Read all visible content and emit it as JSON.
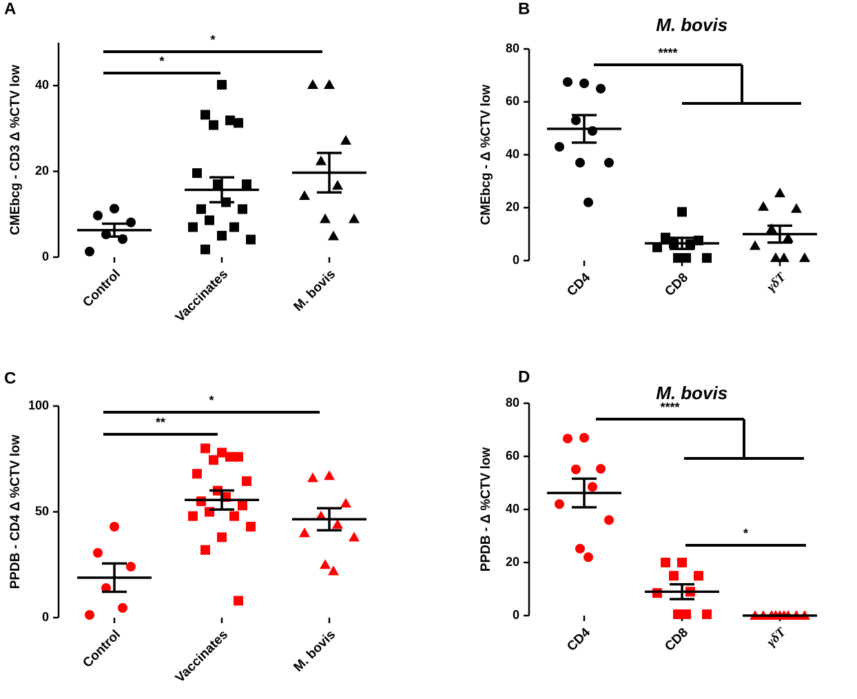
{
  "chart_data": [
    {
      "type": "dot",
      "panel": "A",
      "ylabel": "CMEbcg - CD3 Δ %CTV low",
      "categories": [
        "Control",
        "Vaccinates",
        "M. bovis"
      ],
      "markers": [
        "circle",
        "square",
        "triangle"
      ],
      "color": "#000000",
      "values": [
        [
          11.3,
          9.7,
          8.1,
          5.3,
          4.2,
          1.3
        ],
        [
          40.2,
          33.2,
          31.3,
          30.8,
          31.9,
          19.6,
          17.0,
          17.0,
          12.8,
          11.2,
          11.2,
          8.6,
          7.0,
          7.0,
          4.1,
          5.0,
          1.8
        ],
        [
          40.2,
          40.2,
          27.2,
          22.4,
          16.7,
          14.3,
          8.9,
          8.9,
          4.9
        ]
      ],
      "means": [
        6.3,
        15.7,
        19.7
      ],
      "sems": [
        1.5,
        2.9,
        4.6
      ],
      "ylim": [
        0,
        50
      ],
      "yticks": [
        0,
        20,
        40
      ],
      "significance": [
        {
          "groups": [
            0
          ],
          "vs": [
            1
          ],
          "label": "*"
        },
        {
          "groups": [
            0
          ],
          "vs": [
            2
          ],
          "label": "*"
        }
      ]
    },
    {
      "type": "dot",
      "panel": "B",
      "title": "M. bovis",
      "ylabel": "CMEbcg - Δ %CTV low",
      "categories": [
        "CD4",
        "CD8",
        "γδT"
      ],
      "markers": [
        "circle",
        "square",
        "triangle"
      ],
      "color": "#000000",
      "values": [
        [
          67.0,
          67.5,
          65.0,
          53.0,
          49.0,
          43.0,
          37.0,
          37.0,
          22.0
        ],
        [
          18.4,
          8.7,
          7.6,
          6.4,
          6.2,
          5.0,
          1.0,
          1.0,
          1.0
        ],
        [
          25.5,
          20.4,
          19.6,
          12.0,
          8.5,
          5.6,
          1.0,
          1.0,
          1.0
        ]
      ],
      "means": [
        49.8,
        6.5,
        10.0
      ],
      "sems": [
        5.2,
        2.1,
        3.2
      ],
      "ylim": [
        0,
        80
      ],
      "yticks": [
        0,
        20,
        40,
        60,
        80
      ],
      "significance": [
        {
          "groups": [
            0
          ],
          "vs": [
            1,
            2
          ],
          "label": "****"
        }
      ]
    },
    {
      "type": "dot",
      "panel": "C",
      "ylabel": "PPDB - CD4 Δ %CTV low",
      "categories": [
        "Control",
        "Vaccinates",
        "M. bovis"
      ],
      "markers": [
        "circle",
        "square",
        "triangle"
      ],
      "color": "#ff0000",
      "values": [
        [
          43.0,
          30.6,
          24.1,
          14.0,
          4.6,
          1.3
        ],
        [
          78.0,
          80.0,
          76.0,
          74.5,
          76.0,
          68.0,
          64.5,
          60.0,
          57.0,
          55.0,
          53.0,
          50.0,
          48.0,
          48.0,
          43.0,
          38.0,
          32.0,
          8.0
        ],
        [
          67.0,
          66.0,
          54.0,
          48.0,
          44.0,
          40.0,
          38.0,
          25.0,
          22.0
        ]
      ],
      "means": [
        18.9,
        55.6,
        46.5
      ],
      "sems": [
        6.7,
        4.5,
        5.2
      ],
      "ylim": [
        0,
        100
      ],
      "yticks": [
        0,
        50,
        100
      ],
      "significance": [
        {
          "groups": [
            0
          ],
          "vs": [
            1
          ],
          "label": "**"
        },
        {
          "groups": [
            0
          ],
          "vs": [
            2
          ],
          "label": "*"
        }
      ]
    },
    {
      "type": "dot",
      "panel": "D",
      "title": "M. bovis",
      "ylabel": "PPDB - Δ %CTV low",
      "categories": [
        "CD4",
        "CD8",
        "γδT"
      ],
      "markers": [
        "circle",
        "square",
        "triangle"
      ],
      "color": "#ff0000",
      "values": [
        [
          67.0,
          66.7,
          55.3,
          55.1,
          48.5,
          42.0,
          36.0,
          25.2,
          22.0
        ],
        [
          20.0,
          20.0,
          15.0,
          15.0,
          9.0,
          8.5,
          0.5,
          0.5,
          0.5
        ],
        [
          0,
          0,
          0,
          0,
          0,
          0,
          0,
          0,
          0
        ]
      ],
      "means": [
        46.2,
        9.0,
        0
      ],
      "sems": [
        5.4,
        2.8,
        0
      ],
      "ylim": [
        0,
        80
      ],
      "yticks": [
        0,
        20,
        40,
        60,
        80
      ],
      "significance": [
        {
          "groups": [
            0
          ],
          "vs": [
            1,
            2
          ],
          "label": "****"
        },
        {
          "groups": [
            1
          ],
          "vs": [
            2
          ],
          "label": "*"
        }
      ]
    }
  ]
}
